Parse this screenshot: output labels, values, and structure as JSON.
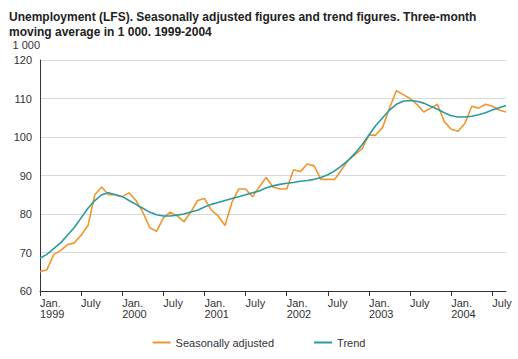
{
  "chart_data": {
    "type": "line",
    "title": "Unemployment (LFS). Seasonally adjusted figures and trend figures. Three-month moving average in 1 000. 1999-2004",
    "ylabel": "1 000",
    "categories": [
      "Jan.\n1999",
      null,
      null,
      null,
      null,
      null,
      "July",
      null,
      null,
      null,
      null,
      null,
      "Jan.\n2000",
      null,
      null,
      null,
      null,
      null,
      "July",
      null,
      null,
      null,
      null,
      null,
      "Jan.\n2001",
      null,
      null,
      null,
      null,
      null,
      "July",
      null,
      null,
      null,
      null,
      null,
      "Jan.\n2002",
      null,
      null,
      null,
      null,
      null,
      "July",
      null,
      null,
      null,
      null,
      null,
      "Jan.\n2003",
      null,
      null,
      null,
      null,
      null,
      "July",
      null,
      null,
      null,
      null,
      null,
      "Jan.\n2004",
      null,
      null,
      null,
      null,
      null,
      "July",
      null,
      null
    ],
    "series": [
      {
        "name": "Seasonally adjusted",
        "color": "#f0962a",
        "values": [
          65,
          65.5,
          69.5,
          70.5,
          72,
          72.5,
          74.5,
          77,
          85,
          87,
          85,
          85,
          84.5,
          85.5,
          83.5,
          80.5,
          76.5,
          75.5,
          79,
          80.5,
          79.5,
          78,
          80.5,
          83.5,
          84,
          81,
          79.5,
          77,
          83,
          86.5,
          86.5,
          84.5,
          87,
          89.5,
          87,
          86.5,
          86.5,
          91.5,
          91,
          93,
          92.5,
          89,
          89,
          89,
          91.5,
          94,
          95.5,
          97,
          100.5,
          100.5,
          102.5,
          107.5,
          112,
          111,
          110,
          108.5,
          106.5,
          107.5,
          108.5,
          104,
          102,
          101.5,
          103.5,
          108,
          107.5,
          108.5,
          108,
          107,
          106.5
        ]
      },
      {
        "name": "Trend",
        "color": "#2a9aa0",
        "values": [
          68.5,
          69.5,
          71,
          72.5,
          74.5,
          76.5,
          79,
          81.5,
          83.5,
          85,
          85.5,
          85,
          84.5,
          83.5,
          82.5,
          81.5,
          80.5,
          79.8,
          79.5,
          79.5,
          79.7,
          80,
          80.5,
          81,
          81.8,
          82.5,
          83,
          83.5,
          84,
          84.5,
          85,
          85.5,
          86,
          86.8,
          87.3,
          87.7,
          88,
          88.2,
          88.5,
          88.7,
          89,
          89.5,
          90.2,
          91.2,
          92.5,
          94,
          95.8,
          98,
          100.5,
          103,
          105,
          107,
          108.5,
          109.3,
          109.5,
          109.3,
          108.8,
          108,
          107.2,
          106.3,
          105.5,
          105.2,
          105.2,
          105.4,
          105.8,
          106.3,
          107,
          107.6,
          108.2
        ]
      }
    ],
    "ylim": [
      60,
      120
    ],
    "yticks": [
      60,
      70,
      80,
      90,
      100,
      110,
      120
    ],
    "grid": true,
    "legend": "bottom"
  }
}
